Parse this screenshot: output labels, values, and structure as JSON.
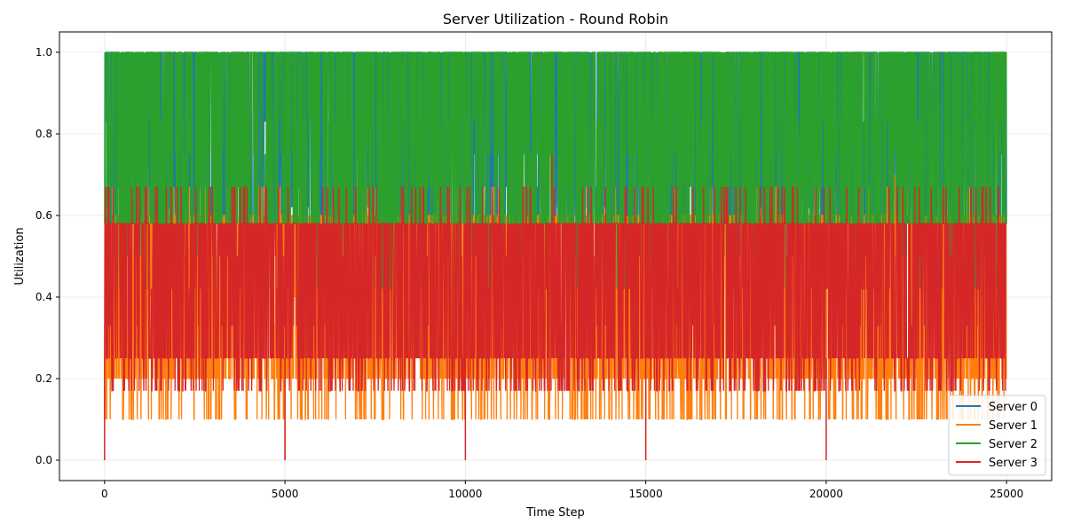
{
  "chart_data": {
    "type": "line",
    "title": "Server Utilization - Round Robin",
    "xlabel": "Time Step",
    "ylabel": "Utilization",
    "xlim": [
      -1250,
      26250
    ],
    "ylim": [
      -0.05,
      1.05
    ],
    "x_ticks": [
      0,
      5000,
      10000,
      15000,
      20000,
      25000
    ],
    "x_tick_labels": [
      "0",
      "5000",
      "10000",
      "15000",
      "20000",
      "25000"
    ],
    "y_ticks": [
      0.0,
      0.2,
      0.4,
      0.6,
      0.8,
      1.0
    ],
    "y_tick_labels": [
      "0.0",
      "0.2",
      "0.4",
      "0.6",
      "0.8",
      "1.0"
    ],
    "grid": true,
    "legend_position": "lower-right",
    "x_range": [
      0,
      25000
    ],
    "series": [
      {
        "name": "Server 0",
        "color": "#1f77b4",
        "typical_range": [
          0.58,
          1.0
        ],
        "levels": [
          0.5,
          0.58,
          0.62,
          0.67,
          0.75,
          0.83,
          1.0
        ],
        "spikes": [
          {
            "x": 21900,
            "y": 0.83
          },
          {
            "x": 12500,
            "y": 0.83
          },
          {
            "x": 1000,
            "y": 0.83
          }
        ]
      },
      {
        "name": "Server 1",
        "color": "#ff7f0e",
        "typical_range": [
          0.2,
          0.6
        ],
        "levels": [
          0.1,
          0.2,
          0.25,
          0.33,
          0.4,
          0.5,
          0.6,
          0.67
        ],
        "spikes": [
          {
            "x": 21900,
            "y": 0.7
          },
          {
            "x": 5000,
            "y": 0.0
          },
          {
            "x": 15000,
            "y": 0.0
          }
        ]
      },
      {
        "name": "Server 2",
        "color": "#2ca02c",
        "typical_range": [
          0.58,
          1.0
        ],
        "levels": [
          0.42,
          0.5,
          0.58,
          0.67,
          0.75,
          0.83,
          1.0
        ],
        "spikes": []
      },
      {
        "name": "Server 3",
        "color": "#d62728",
        "typical_range": [
          0.25,
          0.58
        ],
        "levels": [
          0.17,
          0.25,
          0.33,
          0.42,
          0.5,
          0.58,
          0.67
        ],
        "spikes": [
          {
            "x": 0,
            "y": 0.0
          },
          {
            "x": 5000,
            "y": 0.0
          },
          {
            "x": 10000,
            "y": 0.0
          },
          {
            "x": 15000,
            "y": 0.0
          },
          {
            "x": 20000,
            "y": 0.0
          },
          {
            "x": 12400,
            "y": 0.75
          }
        ]
      }
    ]
  }
}
